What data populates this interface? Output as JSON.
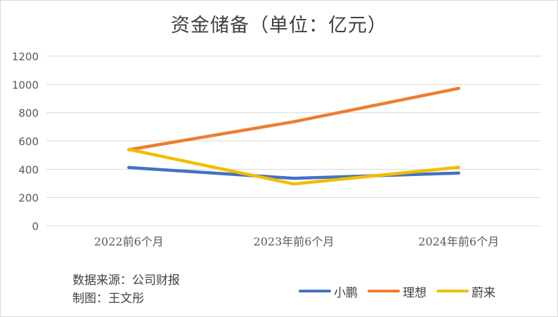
{
  "chart_data": {
    "type": "line",
    "title": "资金储备（单位：亿元）",
    "categories": [
      "2022前6个月",
      "2023年前6个月",
      "2024年前6个月"
    ],
    "y_ticks": [
      "0",
      "200",
      "400",
      "600",
      "800",
      "1000",
      "1200"
    ],
    "ylim": [
      0,
      1200
    ],
    "grid": true,
    "legend_position": "bottom-right",
    "series": [
      {
        "name": "小鹏",
        "color": "#4472c4",
        "values": [
          412,
          336,
          373
        ]
      },
      {
        "name": "理想",
        "color": "#ed7d31",
        "values": [
          538,
          736,
          972
        ]
      },
      {
        "name": "蔚来",
        "color": "#f0be00",
        "values": [
          540,
          296,
          414
        ]
      }
    ]
  },
  "source": {
    "data_source": "数据来源：公司财报",
    "author": "制图：王文彤"
  }
}
